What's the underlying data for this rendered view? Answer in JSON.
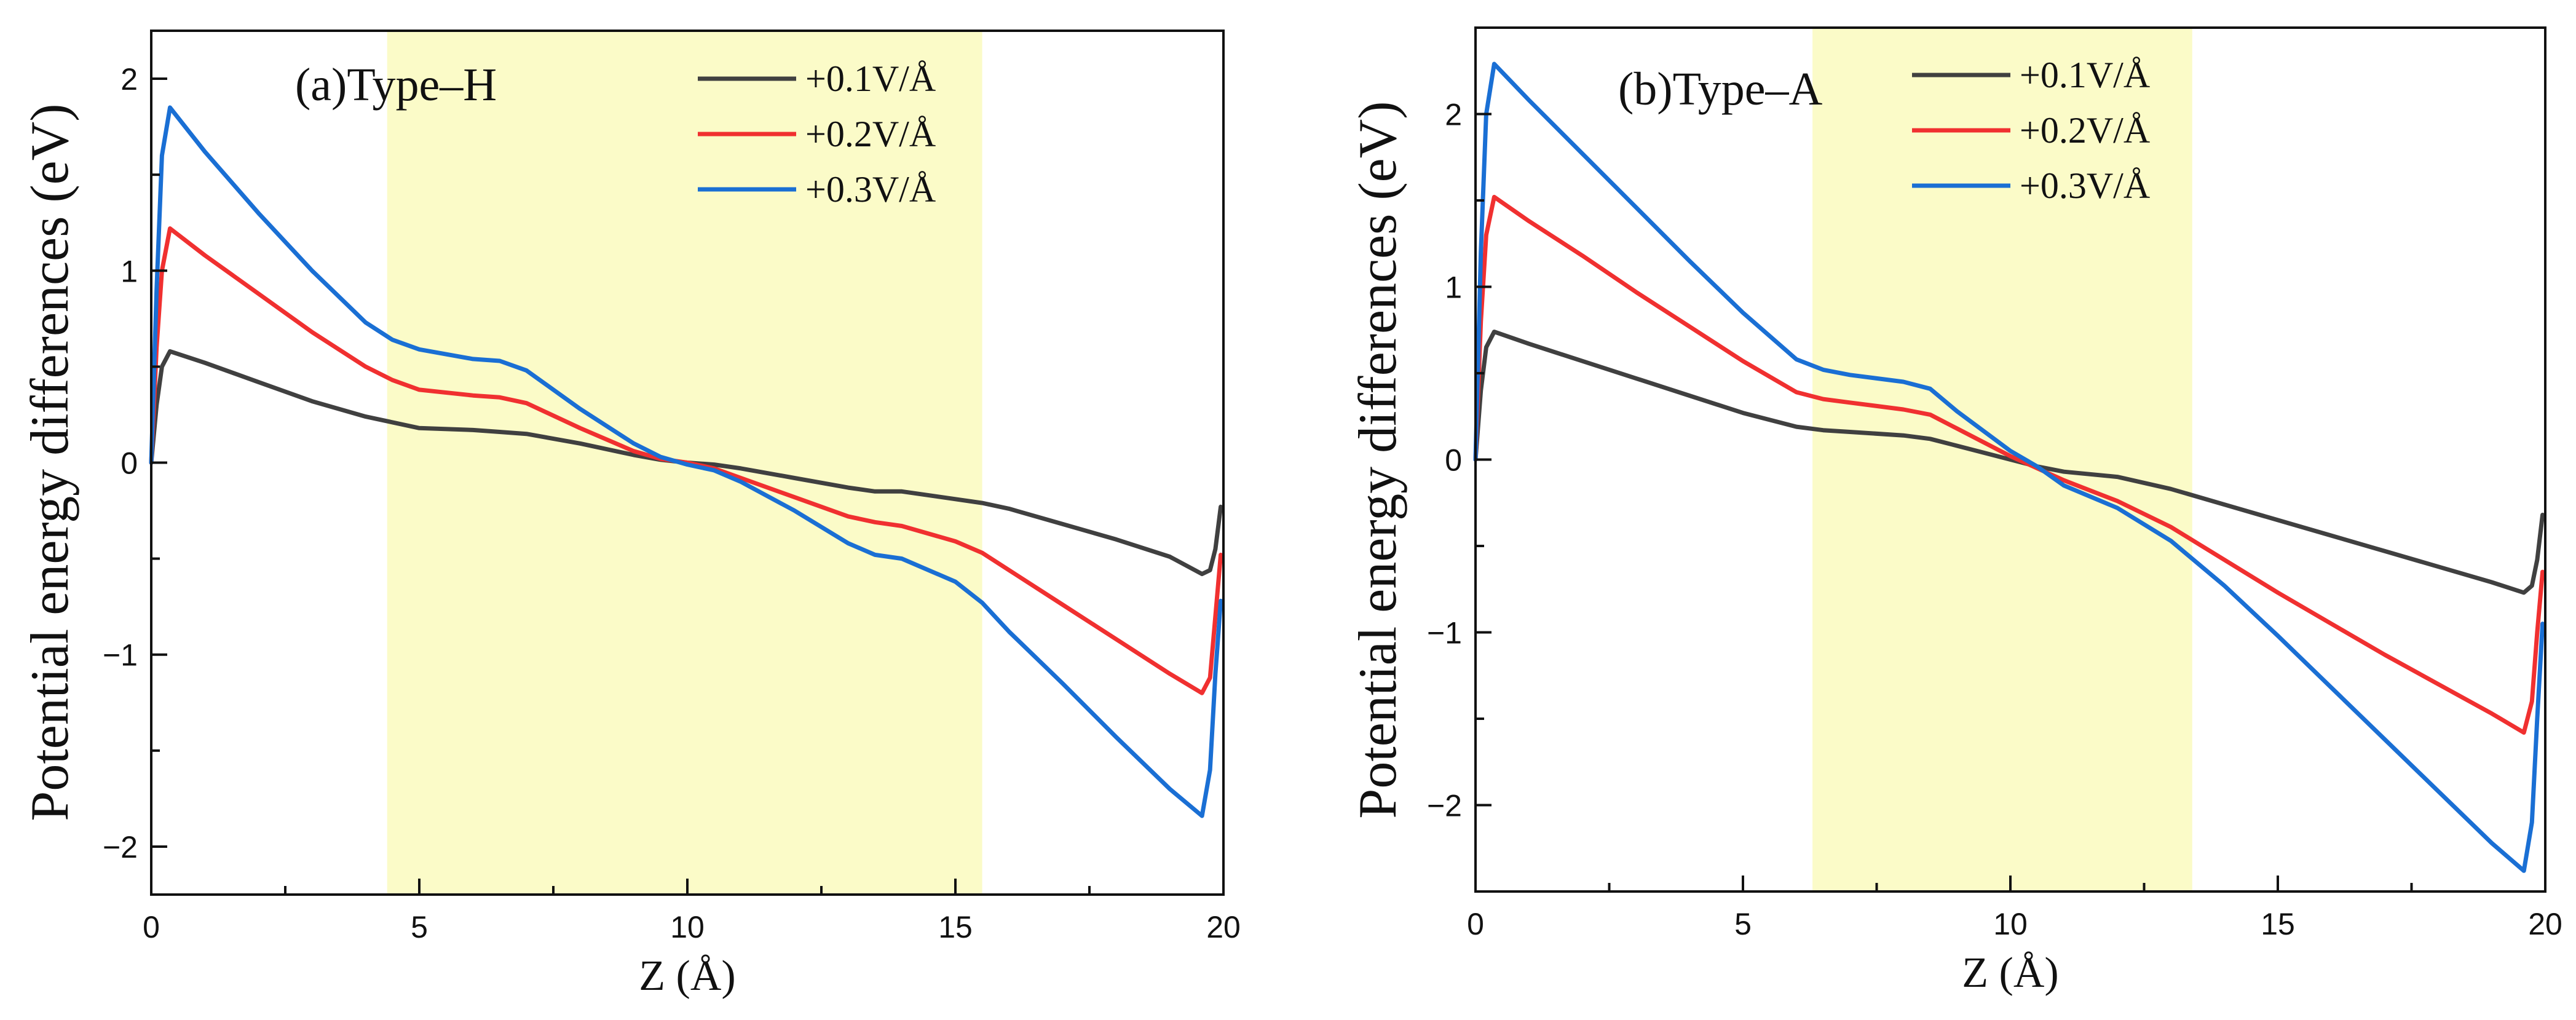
{
  "chart_data": [
    {
      "type": "line",
      "panel_label": "(a)Type–H",
      "xlabel": "Z (Å)",
      "ylabel": "Potential energy differences (eV)",
      "xlim": [
        0,
        20
      ],
      "ylim": [
        -2.25,
        2.25
      ],
      "xticks": [
        0,
        5,
        10,
        15,
        20
      ],
      "xtick_labels": [
        "0",
        "5",
        "10",
        "15",
        "20"
      ],
      "yticks": [
        -2,
        -1,
        0,
        1,
        2
      ],
      "ytick_labels": [
        "−2",
        "−1",
        "0",
        "1",
        "2"
      ],
      "shaded_region": [
        4.4,
        15.5
      ],
      "legend_position": "top-right",
      "series": [
        {
          "name": "+0.1V/Å",
          "color": "#404040",
          "x": [
            0,
            0.1,
            0.2,
            0.35,
            1,
            2,
            3,
            4,
            4.5,
            5,
            6,
            6.5,
            7,
            8,
            9,
            9.5,
            10,
            10.5,
            11,
            12,
            13,
            13.5,
            14,
            15,
            15.5,
            16,
            17,
            18,
            19,
            19.6,
            19.75,
            19.85,
            19.95
          ],
          "y": [
            0,
            0.3,
            0.5,
            0.58,
            0.52,
            0.42,
            0.32,
            0.24,
            0.21,
            0.18,
            0.17,
            0.16,
            0.15,
            0.1,
            0.04,
            0.015,
            0,
            -0.01,
            -0.03,
            -0.08,
            -0.13,
            -0.15,
            -0.15,
            -0.19,
            -0.21,
            -0.24,
            -0.32,
            -0.4,
            -0.49,
            -0.58,
            -0.56,
            -0.45,
            -0.23
          ]
        },
        {
          "name": "+0.2V/Å",
          "color": "#f03030",
          "x": [
            0,
            0.1,
            0.2,
            0.35,
            1,
            2,
            3,
            4,
            4.5,
            5,
            6,
            6.5,
            7,
            8,
            9,
            9.5,
            10,
            10.5,
            11,
            12,
            13,
            13.5,
            14,
            15,
            15.5,
            16,
            17,
            18,
            19,
            19.6,
            19.75,
            19.85,
            19.95
          ],
          "y": [
            0,
            0.6,
            1.0,
            1.22,
            1.08,
            0.88,
            0.68,
            0.5,
            0.43,
            0.38,
            0.35,
            0.34,
            0.31,
            0.18,
            0.06,
            0.02,
            0,
            -0.03,
            -0.08,
            -0.18,
            -0.28,
            -0.31,
            -0.33,
            -0.41,
            -0.47,
            -0.56,
            -0.74,
            -0.92,
            -1.1,
            -1.2,
            -1.12,
            -0.8,
            -0.48
          ]
        },
        {
          "name": "+0.3V/Å",
          "color": "#1a6fd4",
          "x": [
            0,
            0.1,
            0.2,
            0.35,
            1,
            2,
            3,
            4,
            4.5,
            5,
            6,
            6.5,
            7,
            8,
            9,
            9.5,
            10,
            10.5,
            11,
            12,
            13,
            13.5,
            14,
            15,
            15.5,
            16,
            17,
            18,
            19,
            19.6,
            19.75,
            19.85,
            19.95
          ],
          "y": [
            0,
            0.9,
            1.6,
            1.85,
            1.62,
            1.3,
            1.0,
            0.73,
            0.64,
            0.59,
            0.54,
            0.53,
            0.48,
            0.28,
            0.1,
            0.03,
            -0.01,
            -0.04,
            -0.1,
            -0.25,
            -0.42,
            -0.48,
            -0.5,
            -0.62,
            -0.73,
            -0.88,
            -1.15,
            -1.43,
            -1.7,
            -1.84,
            -1.6,
            -1.1,
            -0.72
          ]
        }
      ]
    },
    {
      "type": "line",
      "panel_label": "(b)Type–A",
      "xlabel": "Z (Å)",
      "ylabel": "Potential energy differences (eV)",
      "xlim": [
        0,
        20
      ],
      "ylim": [
        -2.5,
        2.5
      ],
      "xticks": [
        0,
        5,
        10,
        15,
        20
      ],
      "xtick_labels": [
        "0",
        "5",
        "10",
        "15",
        "20"
      ],
      "yticks": [
        -2,
        -1,
        0,
        1,
        2
      ],
      "ytick_labels": [
        "−2",
        "−1",
        "0",
        "1",
        "2"
      ],
      "shaded_region": [
        6.3,
        13.4
      ],
      "legend_position": "top-right",
      "series": [
        {
          "name": "+0.1V/Å",
          "color": "#404040",
          "x": [
            0,
            0.1,
            0.2,
            0.35,
            1,
            2,
            3,
            4,
            5,
            6,
            6.5,
            7,
            8,
            8.5,
            9,
            10,
            10.5,
            11,
            12,
            13,
            14,
            15,
            16,
            17,
            18,
            19,
            19.6,
            19.75,
            19.85,
            19.95
          ],
          "y": [
            0,
            0.4,
            0.65,
            0.74,
            0.67,
            0.57,
            0.47,
            0.37,
            0.27,
            0.19,
            0.17,
            0.16,
            0.14,
            0.12,
            0.08,
            0,
            -0.04,
            -0.07,
            -0.1,
            -0.17,
            -0.26,
            -0.35,
            -0.44,
            -0.53,
            -0.62,
            -0.71,
            -0.77,
            -0.73,
            -0.58,
            -0.32
          ]
        },
        {
          "name": "+0.2V/Å",
          "color": "#f03030",
          "x": [
            0,
            0.1,
            0.2,
            0.35,
            1,
            2,
            3,
            4,
            5,
            6,
            6.5,
            7,
            8,
            8.5,
            9,
            10,
            10.5,
            11,
            12,
            13,
            14,
            15,
            16,
            17,
            18,
            19,
            19.6,
            19.75,
            19.85,
            19.95
          ],
          "y": [
            0,
            0.8,
            1.3,
            1.52,
            1.38,
            1.18,
            0.97,
            0.77,
            0.57,
            0.39,
            0.35,
            0.33,
            0.29,
            0.26,
            0.18,
            0.02,
            -0.05,
            -0.12,
            -0.24,
            -0.39,
            -0.58,
            -0.77,
            -0.95,
            -1.13,
            -1.3,
            -1.47,
            -1.58,
            -1.4,
            -1.0,
            -0.65
          ]
        },
        {
          "name": "+0.3V/Å",
          "color": "#1a6fd4",
          "x": [
            0,
            0.1,
            0.2,
            0.35,
            1,
            2,
            3,
            4,
            5,
            6,
            6.5,
            7,
            8,
            8.5,
            9,
            10,
            10.5,
            11,
            12,
            13,
            14,
            15,
            16,
            17,
            18,
            19,
            19.6,
            19.75,
            19.85,
            19.95
          ],
          "y": [
            0,
            1.2,
            2.0,
            2.29,
            2.08,
            1.77,
            1.46,
            1.15,
            0.85,
            0.58,
            0.52,
            0.49,
            0.45,
            0.41,
            0.28,
            0.05,
            -0.04,
            -0.15,
            -0.28,
            -0.47,
            -0.73,
            -1.02,
            -1.32,
            -1.62,
            -1.92,
            -2.22,
            -2.38,
            -2.1,
            -1.5,
            -0.95
          ]
        }
      ]
    }
  ]
}
